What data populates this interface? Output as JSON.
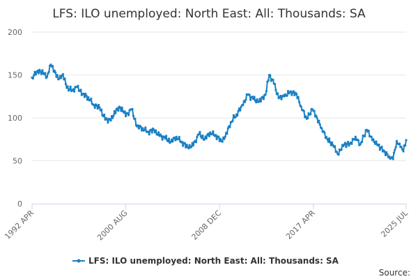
{
  "chart_data": {
    "type": "line",
    "title": "LFS: ILO unemployed: North East: All: Thousands: SA",
    "xlabel": "",
    "ylabel": "",
    "x_range": [
      "1992-04",
      "2025-07"
    ],
    "ylim": [
      0,
      200
    ],
    "y_ticks": [
      0,
      50,
      100,
      150,
      200
    ],
    "x_ticks": [
      {
        "label": "1992 APR",
        "date": "1992-04"
      },
      {
        "label": "2000 AUG",
        "date": "2000-08"
      },
      {
        "label": "2008 DEC",
        "date": "2008-12"
      },
      {
        "label": "2017 APR",
        "date": "2017-04"
      },
      {
        "label": "2025 JUL",
        "date": "2025-07"
      }
    ],
    "grid": "horizontal",
    "legend_position": "bottom",
    "series": [
      {
        "name": "LFS: ILO unemployed: North East: All: Thousands: SA",
        "color": "#1a80c4",
        "points": [
          [
            "1992-04",
            147
          ],
          [
            "1992-10",
            155
          ],
          [
            "1993-04",
            152
          ],
          [
            "1993-08",
            148
          ],
          [
            "1993-12",
            162
          ],
          [
            "1994-04",
            155
          ],
          [
            "1994-08",
            145
          ],
          [
            "1995-01",
            151
          ],
          [
            "1995-05",
            135
          ],
          [
            "1995-11",
            132
          ],
          [
            "1996-04",
            136
          ],
          [
            "1996-10",
            128
          ],
          [
            "1997-04",
            124
          ],
          [
            "1997-10",
            115
          ],
          [
            "1998-04",
            112
          ],
          [
            "1998-10",
            98
          ],
          [
            "1999-04",
            97
          ],
          [
            "1999-10",
            110
          ],
          [
            "2000-04",
            112
          ],
          [
            "2000-08",
            102
          ],
          [
            "2001-02",
            110
          ],
          [
            "2001-08",
            90
          ],
          [
            "2002-02",
            88
          ],
          [
            "2002-08",
            84
          ],
          [
            "2003-02",
            86
          ],
          [
            "2003-08",
            79
          ],
          [
            "2004-02",
            76
          ],
          [
            "2004-08",
            72
          ],
          [
            "2005-02",
            78
          ],
          [
            "2005-08",
            72
          ],
          [
            "2006-02",
            66
          ],
          [
            "2006-08",
            68
          ],
          [
            "2007-02",
            81
          ],
          [
            "2007-08",
            75
          ],
          [
            "2008-02",
            83
          ],
          [
            "2008-08",
            80
          ],
          [
            "2009-02",
            73
          ],
          [
            "2009-06",
            78
          ],
          [
            "2009-12",
            95
          ],
          [
            "2010-06",
            104
          ],
          [
            "2011-01",
            115
          ],
          [
            "2011-06",
            127
          ],
          [
            "2011-12",
            122
          ],
          [
            "2012-06",
            119
          ],
          [
            "2013-01",
            127
          ],
          [
            "2013-05",
            150
          ],
          [
            "2013-10",
            140
          ],
          [
            "2014-03",
            123
          ],
          [
            "2014-09",
            125
          ],
          [
            "2015-03",
            130
          ],
          [
            "2015-10",
            128
          ],
          [
            "2016-03",
            113
          ],
          [
            "2016-09",
            99
          ],
          [
            "2017-03",
            110
          ],
          [
            "2017-08",
            100
          ],
          [
            "2018-01",
            88
          ],
          [
            "2018-07",
            75
          ],
          [
            "2019-01",
            68
          ],
          [
            "2019-06",
            58
          ],
          [
            "2020-01",
            69
          ],
          [
            "2020-07",
            70
          ],
          [
            "2021-01",
            78
          ],
          [
            "2021-06",
            69
          ],
          [
            "2022-01",
            86
          ],
          [
            "2022-07",
            74
          ],
          [
            "2023-01",
            68
          ],
          [
            "2023-07",
            62
          ],
          [
            "2024-01",
            55
          ],
          [
            "2024-05",
            52
          ],
          [
            "2024-09",
            73
          ],
          [
            "2025-01",
            66
          ],
          [
            "2025-04",
            61
          ],
          [
            "2025-07",
            74
          ]
        ]
      }
    ],
    "source_label": "Source:"
  }
}
